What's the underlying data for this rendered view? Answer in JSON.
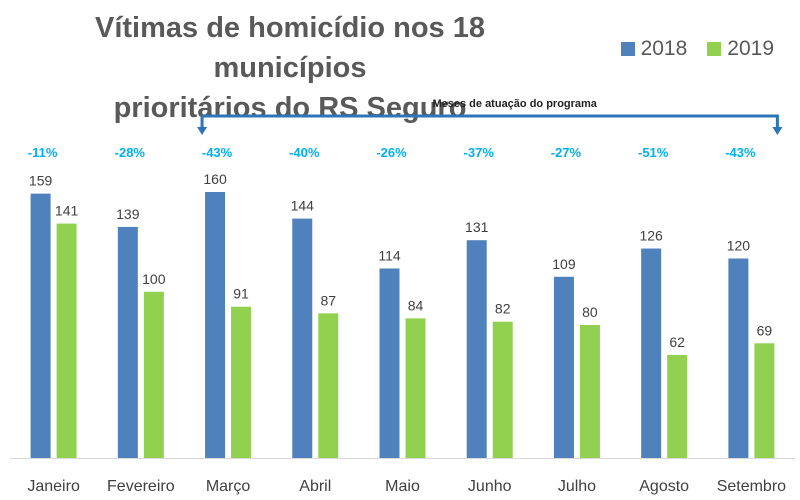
{
  "chart_data": {
    "type": "bar",
    "title": "Vítimas de homicídio nos 18 municípios prioritários do RS Seguro",
    "title_lines": [
      "Vítimas de homicídio nos 18 municípios",
      "prioritários do RS Seguro"
    ],
    "categories": [
      "Janeiro",
      "Fevereiro",
      "Março",
      "Abril",
      "Maio",
      "Junho",
      "Julho",
      "Agosto",
      "Setembro"
    ],
    "series": [
      {
        "name": "2018",
        "color": "#4F81BD",
        "values": [
          159,
          139,
          160,
          144,
          114,
          131,
          109,
          126,
          120
        ]
      },
      {
        "name": "2019",
        "color": "#92D050",
        "values": [
          141,
          100,
          91,
          87,
          84,
          82,
          80,
          62,
          69
        ]
      }
    ],
    "percent_changes": [
      "-11%",
      "-28%",
      "-43%",
      "-40%",
      "-26%",
      "-37%",
      "-27%",
      "-51%",
      "-43%"
    ],
    "percent_color": "#00B0F0",
    "annotation": {
      "text": "Meses de atuação do programa",
      "from_category": "Março",
      "to_category": "Setembro",
      "color": "#2E75B6"
    },
    "ylim": [
      0,
      160
    ],
    "grid": false,
    "legend_position": "top-right",
    "xlabel": "",
    "ylabel": ""
  }
}
